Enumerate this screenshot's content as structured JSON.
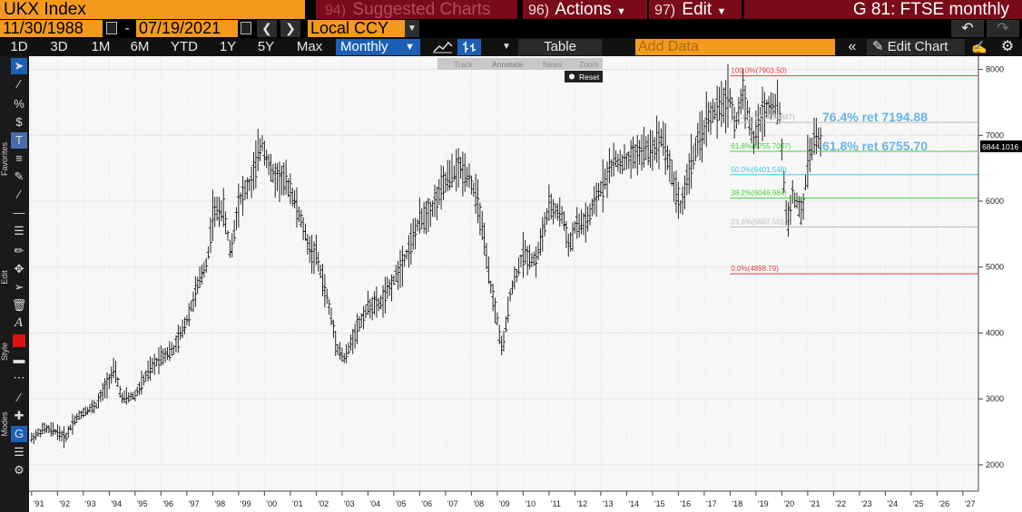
{
  "header": {
    "ticker": "UKX Index",
    "suggested_num": "94)",
    "suggested_label": "Suggested Charts",
    "actions_num": "96)",
    "actions_label": "Actions",
    "edit_num": "97)",
    "edit_label": "Edit",
    "graph_title": "G 81: FTSE monthly"
  },
  "range": {
    "start": "11/30/1988",
    "sep": "-",
    "end": "07/19/2021",
    "currency": "Local CCY"
  },
  "periods": [
    "1D",
    "3D",
    "1M",
    "6M",
    "YTD",
    "1Y",
    "5Y",
    "Max"
  ],
  "frequency": "Monthly",
  "table_label": "Table",
  "add_data_placeholder": "Add Data",
  "edit_chart_label": "Edit Chart",
  "chart_tools": {
    "track": "Track",
    "annotate": "Annotate",
    "news": "News",
    "zoom": "Zoom",
    "reset": "Reset"
  },
  "toolbar_labels": {
    "favorites": "Favorites",
    "edit": "Edit",
    "style": "Style",
    "modes": "Modes"
  },
  "colors": {
    "orange": "#f39a1d",
    "maroon": "#7a0b1a",
    "blue": "#1d5fb4",
    "fib_red": "#e04040",
    "fib_green": "#40d040",
    "fib_cyan": "#40c8e8",
    "fib_gray": "#bcbcbc",
    "callout": "#6ab4e6"
  },
  "chart_data": {
    "type": "ohlc",
    "series": [
      {
        "name": "UKX Index",
        "color": "#000000"
      }
    ],
    "x_ticks": [
      "'91",
      "'92",
      "'93",
      "'94",
      "'95",
      "'96",
      "'97",
      "'98",
      "'99",
      "'00",
      "'01",
      "'02",
      "'03",
      "'04",
      "'05",
      "'06",
      "'07",
      "'08",
      "'09",
      "'10",
      "'11",
      "'12",
      "'13",
      "'14",
      "'15",
      "'16",
      "'17",
      "'18",
      "'19",
      "'20",
      "'21",
      "'22",
      "'23",
      "'24",
      "'25",
      "'26",
      "'27"
    ],
    "y_ticks": [
      "8000",
      "7000",
      "6000",
      "5000",
      "4000",
      "3000",
      "2000"
    ],
    "ylim": [
      1600,
      8200
    ],
    "xlim": [
      1990.9,
      2027.6
    ],
    "last_price": "6844.1016",
    "grid": true,
    "points": [
      [
        1991.0,
        2400
      ],
      [
        1991.5,
        2550
      ],
      [
        1992.0,
        2500
      ],
      [
        1992.3,
        2400
      ],
      [
        1992.6,
        2650
      ],
      [
        1993.0,
        2800
      ],
      [
        1993.5,
        2900
      ],
      [
        1994.0,
        3300
      ],
      [
        1994.2,
        3450
      ],
      [
        1994.5,
        3000
      ],
      [
        1995.0,
        3050
      ],
      [
        1995.5,
        3400
      ],
      [
        1996.0,
        3650
      ],
      [
        1996.5,
        3750
      ],
      [
        1997.0,
        4200
      ],
      [
        1997.5,
        4800
      ],
      [
        1997.8,
        5100
      ],
      [
        1998.0,
        5800
      ],
      [
        1998.4,
        5900
      ],
      [
        1998.7,
        5200
      ],
      [
        1999.0,
        6000
      ],
      [
        1999.5,
        6300
      ],
      [
        1999.9,
        6900
      ],
      [
        2000.3,
        6400
      ],
      [
        2000.8,
        6300
      ],
      [
        2001.0,
        6200
      ],
      [
        2001.5,
        5600
      ],
      [
        2001.8,
        5200
      ],
      [
        2002.0,
        5200
      ],
      [
        2002.5,
        4400
      ],
      [
        2002.8,
        3800
      ],
      [
        2003.1,
        3600
      ],
      [
        2003.5,
        4000
      ],
      [
        2004.0,
        4400
      ],
      [
        2004.5,
        4450
      ],
      [
        2005.0,
        4800
      ],
      [
        2005.5,
        5200
      ],
      [
        2006.0,
        5700
      ],
      [
        2006.5,
        5900
      ],
      [
        2007.0,
        6300
      ],
      [
        2007.5,
        6500
      ],
      [
        2007.9,
        6400
      ],
      [
        2008.3,
        5900
      ],
      [
        2008.7,
        4800
      ],
      [
        2009.0,
        4200
      ],
      [
        2009.2,
        3700
      ],
      [
        2009.5,
        4600
      ],
      [
        2010.0,
        5200
      ],
      [
        2010.5,
        5100
      ],
      [
        2011.0,
        5900
      ],
      [
        2011.5,
        5800
      ],
      [
        2011.8,
        5300
      ],
      [
        2012.0,
        5600
      ],
      [
        2012.5,
        5700
      ],
      [
        2013.0,
        6200
      ],
      [
        2013.5,
        6600
      ],
      [
        2014.0,
        6600
      ],
      [
        2014.5,
        6750
      ],
      [
        2015.0,
        6800
      ],
      [
        2015.4,
        7000
      ],
      [
        2015.8,
        6300
      ],
      [
        2016.1,
        5900
      ],
      [
        2016.5,
        6600
      ],
      [
        2016.8,
        6900
      ],
      [
        2017.2,
        7300
      ],
      [
        2017.6,
        7400
      ],
      [
        2018.0,
        7600
      ],
      [
        2018.2,
        7100
      ],
      [
        2018.5,
        7700
      ],
      [
        2018.9,
        6900
      ],
      [
        2019.2,
        7300
      ],
      [
        2019.6,
        7500
      ],
      [
        2019.9,
        7400
      ],
      [
        2020.2,
        5600
      ],
      [
        2020.4,
        6100
      ],
      [
        2020.8,
        5800
      ],
      [
        2021.0,
        6600
      ],
      [
        2021.3,
        7000
      ],
      [
        2021.55,
        6844
      ]
    ],
    "fibonacci": [
      {
        "label": "100.0%(7903.50)",
        "value": 7903.5,
        "color": "#e04040"
      },
      {
        "label": "76.4%(7194.88887)",
        "value": 7194.88,
        "color": "#bcbcbc"
      },
      {
        "label": "61.8%(6755.7007)",
        "value": 6755.7,
        "color": "#40d040"
      },
      {
        "label": "50.0%(6401.548)",
        "value": 6401.5,
        "color": "#40c8e8"
      },
      {
        "label": "38.2%(6046.984)",
        "value": 6047.0,
        "color": "#40d040"
      },
      {
        "label": "23.6%(5607.5014)",
        "value": 5607.5,
        "color": "#bcbcbc"
      },
      {
        "label": "0.0%(4898.79)",
        "value": 4898.79,
        "color": "#e04040"
      }
    ],
    "annotations": [
      {
        "text": "76.4% ret 7194.88",
        "value": 7194.88
      },
      {
        "text": "61.8% ret 6755.70",
        "value": 6755.7
      }
    ]
  }
}
